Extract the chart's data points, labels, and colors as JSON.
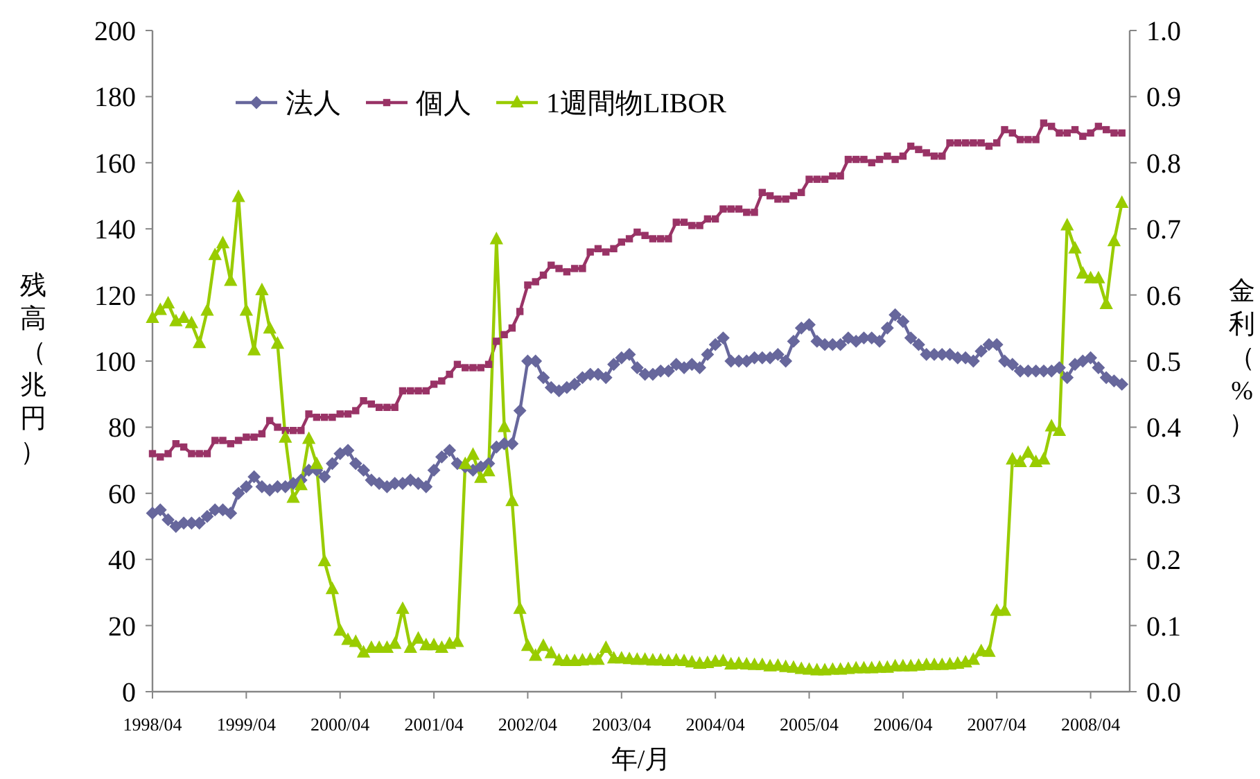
{
  "chart_data": {
    "type": "line",
    "xlabel": "年/月",
    "ylabel": "残高（兆円）",
    "y2label": "金利（%）",
    "legend": "top left",
    "grid": false,
    "line_style": "solid",
    "x": [
      "1998-04",
      "1998-05",
      "1998-06",
      "1998-07",
      "1998-08",
      "1998-09",
      "1998-10",
      "1998-11",
      "1998-12",
      "1999-01",
      "1999-02",
      "1999-03",
      "1999-04",
      "1999-05",
      "1999-06",
      "1999-07",
      "1999-08",
      "1999-09",
      "1999-10",
      "1999-11",
      "1999-12",
      "2000-01",
      "2000-02",
      "2000-03",
      "2000-04",
      "2000-05",
      "2000-06",
      "2000-07",
      "2000-08",
      "2000-09",
      "2000-10",
      "2000-11",
      "2000-12",
      "2001-01",
      "2001-02",
      "2001-03",
      "2001-04",
      "2001-05",
      "2001-06",
      "2001-07",
      "2001-08",
      "2001-09",
      "2001-10",
      "2001-11",
      "2001-12",
      "2002-01",
      "2002-02",
      "2002-03",
      "2002-04",
      "2002-05",
      "2002-06",
      "2002-07",
      "2002-08",
      "2002-09",
      "2002-10",
      "2002-11",
      "2002-12",
      "2003-01",
      "2003-02",
      "2003-03",
      "2003-04",
      "2003-05",
      "2003-06",
      "2003-07",
      "2003-08",
      "2003-09",
      "2003-10",
      "2003-11",
      "2003-12",
      "2004-01",
      "2004-02",
      "2004-03",
      "2004-04",
      "2004-05",
      "2004-06",
      "2004-07",
      "2004-08",
      "2004-09",
      "2004-10",
      "2004-11",
      "2004-12",
      "2005-01",
      "2005-02",
      "2005-03",
      "2005-04",
      "2005-05",
      "2005-06",
      "2005-07",
      "2005-08",
      "2005-09",
      "2005-10",
      "2005-11",
      "2005-12",
      "2006-01",
      "2006-02",
      "2006-03",
      "2006-04",
      "2006-05",
      "2006-06",
      "2006-07",
      "2006-08",
      "2006-09",
      "2006-10",
      "2006-11",
      "2006-12",
      "2007-01",
      "2007-02",
      "2007-03",
      "2007-04",
      "2007-05",
      "2007-06",
      "2007-07",
      "2007-08",
      "2007-09",
      "2007-10",
      "2007-11",
      "2007-12",
      "2008-01",
      "2008-02",
      "2008-03",
      "2008-04",
      "2008-05",
      "2008-06",
      "2008-07",
      "2008-08"
    ],
    "xlim": [
      "1998-04",
      "2008-09"
    ],
    "xticks": [
      {
        "value": "1998-04",
        "label": "1998/04"
      },
      {
        "value": "1999-04",
        "label": "1999/04"
      },
      {
        "value": "2000-04",
        "label": "2000/04"
      },
      {
        "value": "2001-04",
        "label": "2001/04"
      },
      {
        "value": "2002-04",
        "label": "2002/04"
      },
      {
        "value": "2003-04",
        "label": "2003/04"
      },
      {
        "value": "2004-04",
        "label": "2004/04"
      },
      {
        "value": "2005-04",
        "label": "2005/04"
      },
      {
        "value": "2006-04",
        "label": "2006/04"
      },
      {
        "value": "2007-04",
        "label": "2007/04"
      },
      {
        "value": "2008-04",
        "label": "2008/04"
      }
    ],
    "ylim": [
      0,
      200
    ],
    "yticks": [
      0,
      20,
      40,
      60,
      80,
      100,
      120,
      140,
      160,
      180,
      200
    ],
    "y2lim": [
      0,
      1
    ],
    "y2ticks": [
      {
        "value": 0,
        "label": "0.0"
      },
      {
        "value": 0.1,
        "label": "0.1"
      },
      {
        "value": 0.2,
        "label": "0.2"
      },
      {
        "value": 0.3,
        "label": "0.3"
      },
      {
        "value": 0.4,
        "label": "0.4"
      },
      {
        "value": 0.5,
        "label": "0.5"
      },
      {
        "value": 0.6,
        "label": "0.6"
      },
      {
        "value": 0.7,
        "label": "0.7"
      },
      {
        "value": 0.8,
        "label": "0.8"
      },
      {
        "value": 0.9,
        "label": "0.9"
      },
      {
        "value": 1,
        "label": "1.0"
      }
    ],
    "series": [
      {
        "name": "法人",
        "color": "#67679c",
        "marker": "diamond",
        "values": [
          54,
          55,
          52,
          50,
          51,
          51,
          51,
          53,
          55,
          55,
          54,
          60,
          62,
          65,
          62,
          61,
          62,
          62,
          63,
          64,
          67,
          67,
          65,
          69,
          72,
          73,
          69,
          67,
          64,
          63,
          62,
          63,
          63,
          64,
          63,
          62,
          67,
          71,
          73,
          69,
          68,
          67,
          68,
          69,
          74,
          75,
          75,
          85,
          100,
          100,
          95,
          92,
          91,
          92,
          93,
          95,
          96,
          96,
          95,
          99,
          101,
          102,
          98,
          96,
          96,
          97,
          97,
          99,
          98,
          99,
          98,
          102,
          105,
          107,
          100,
          100,
          100,
          101,
          101,
          101,
          102,
          100,
          106,
          110,
          111,
          106,
          105,
          105,
          105,
          107,
          106,
          107,
          107,
          106,
          110,
          114,
          112,
          107,
          105,
          102,
          102,
          102,
          102,
          101,
          101,
          100,
          103,
          105,
          105,
          100,
          99,
          97,
          97,
          97,
          97,
          97,
          98,
          95,
          99,
          100,
          101,
          98,
          95,
          94,
          93
        ]
      },
      {
        "name": "個人",
        "color": "#993366",
        "marker": "square",
        "values": [
          72,
          71,
          72,
          75,
          74,
          72,
          72,
          72,
          76,
          76,
          75,
          76,
          77,
          77,
          78,
          82,
          80,
          79,
          79,
          79,
          84,
          83,
          83,
          83,
          84,
          84,
          85,
          88,
          87,
          86,
          86,
          86,
          91,
          91,
          91,
          91,
          93,
          94,
          96,
          99,
          98,
          98,
          98,
          99,
          106,
          108,
          110,
          115,
          123,
          124,
          126,
          129,
          128,
          127,
          128,
          128,
          133,
          134,
          133,
          134,
          136,
          137,
          139,
          138,
          137,
          137,
          137,
          142,
          142,
          141,
          141,
          143,
          143,
          146,
          146,
          146,
          145,
          145,
          151,
          150,
          149,
          149,
          150,
          151,
          155,
          155,
          155,
          156,
          156,
          161,
          161,
          161,
          160,
          161,
          162,
          161,
          162,
          165,
          164,
          163,
          162,
          162,
          166,
          166,
          166,
          166,
          166,
          165,
          166,
          170,
          169,
          167,
          167,
          167,
          172,
          171,
          169,
          169,
          170,
          168,
          169,
          171,
          170,
          169,
          169
        ]
      },
      {
        "name": "1週間物LIBOR",
        "color": "#99cc00",
        "marker": "triangle",
        "axis": "y2",
        "values": [
          0.565,
          0.577,
          0.587,
          0.56,
          0.565,
          0.557,
          0.527,
          0.576,
          0.66,
          0.678,
          0.621,
          0.748,
          0.576,
          0.516,
          0.607,
          0.549,
          0.526,
          0.384,
          0.293,
          0.312,
          0.382,
          0.344,
          0.197,
          0.155,
          0.092,
          0.078,
          0.075,
          0.059,
          0.066,
          0.066,
          0.066,
          0.072,
          0.125,
          0.066,
          0.08,
          0.07,
          0.07,
          0.066,
          0.072,
          0.075,
          0.344,
          0.358,
          0.323,
          0.333,
          0.684,
          0.4,
          0.288,
          0.125,
          0.069,
          0.054,
          0.069,
          0.058,
          0.047,
          0.046,
          0.046,
          0.047,
          0.048,
          0.048,
          0.066,
          0.05,
          0.05,
          0.049,
          0.048,
          0.048,
          0.047,
          0.047,
          0.046,
          0.047,
          0.046,
          0.044,
          0.042,
          0.043,
          0.045,
          0.046,
          0.041,
          0.042,
          0.041,
          0.04,
          0.04,
          0.038,
          0.039,
          0.037,
          0.036,
          0.034,
          0.033,
          0.032,
          0.032,
          0.033,
          0.033,
          0.034,
          0.035,
          0.035,
          0.035,
          0.036,
          0.036,
          0.038,
          0.038,
          0.038,
          0.039,
          0.04,
          0.04,
          0.04,
          0.041,
          0.042,
          0.044,
          0.048,
          0.061,
          0.06,
          0.122,
          0.122,
          0.351,
          0.347,
          0.361,
          0.347,
          0.351,
          0.401,
          0.394,
          0.705,
          0.67,
          0.632,
          0.625,
          0.625,
          0.586,
          0.681,
          0.739
        ]
      }
    ]
  }
}
